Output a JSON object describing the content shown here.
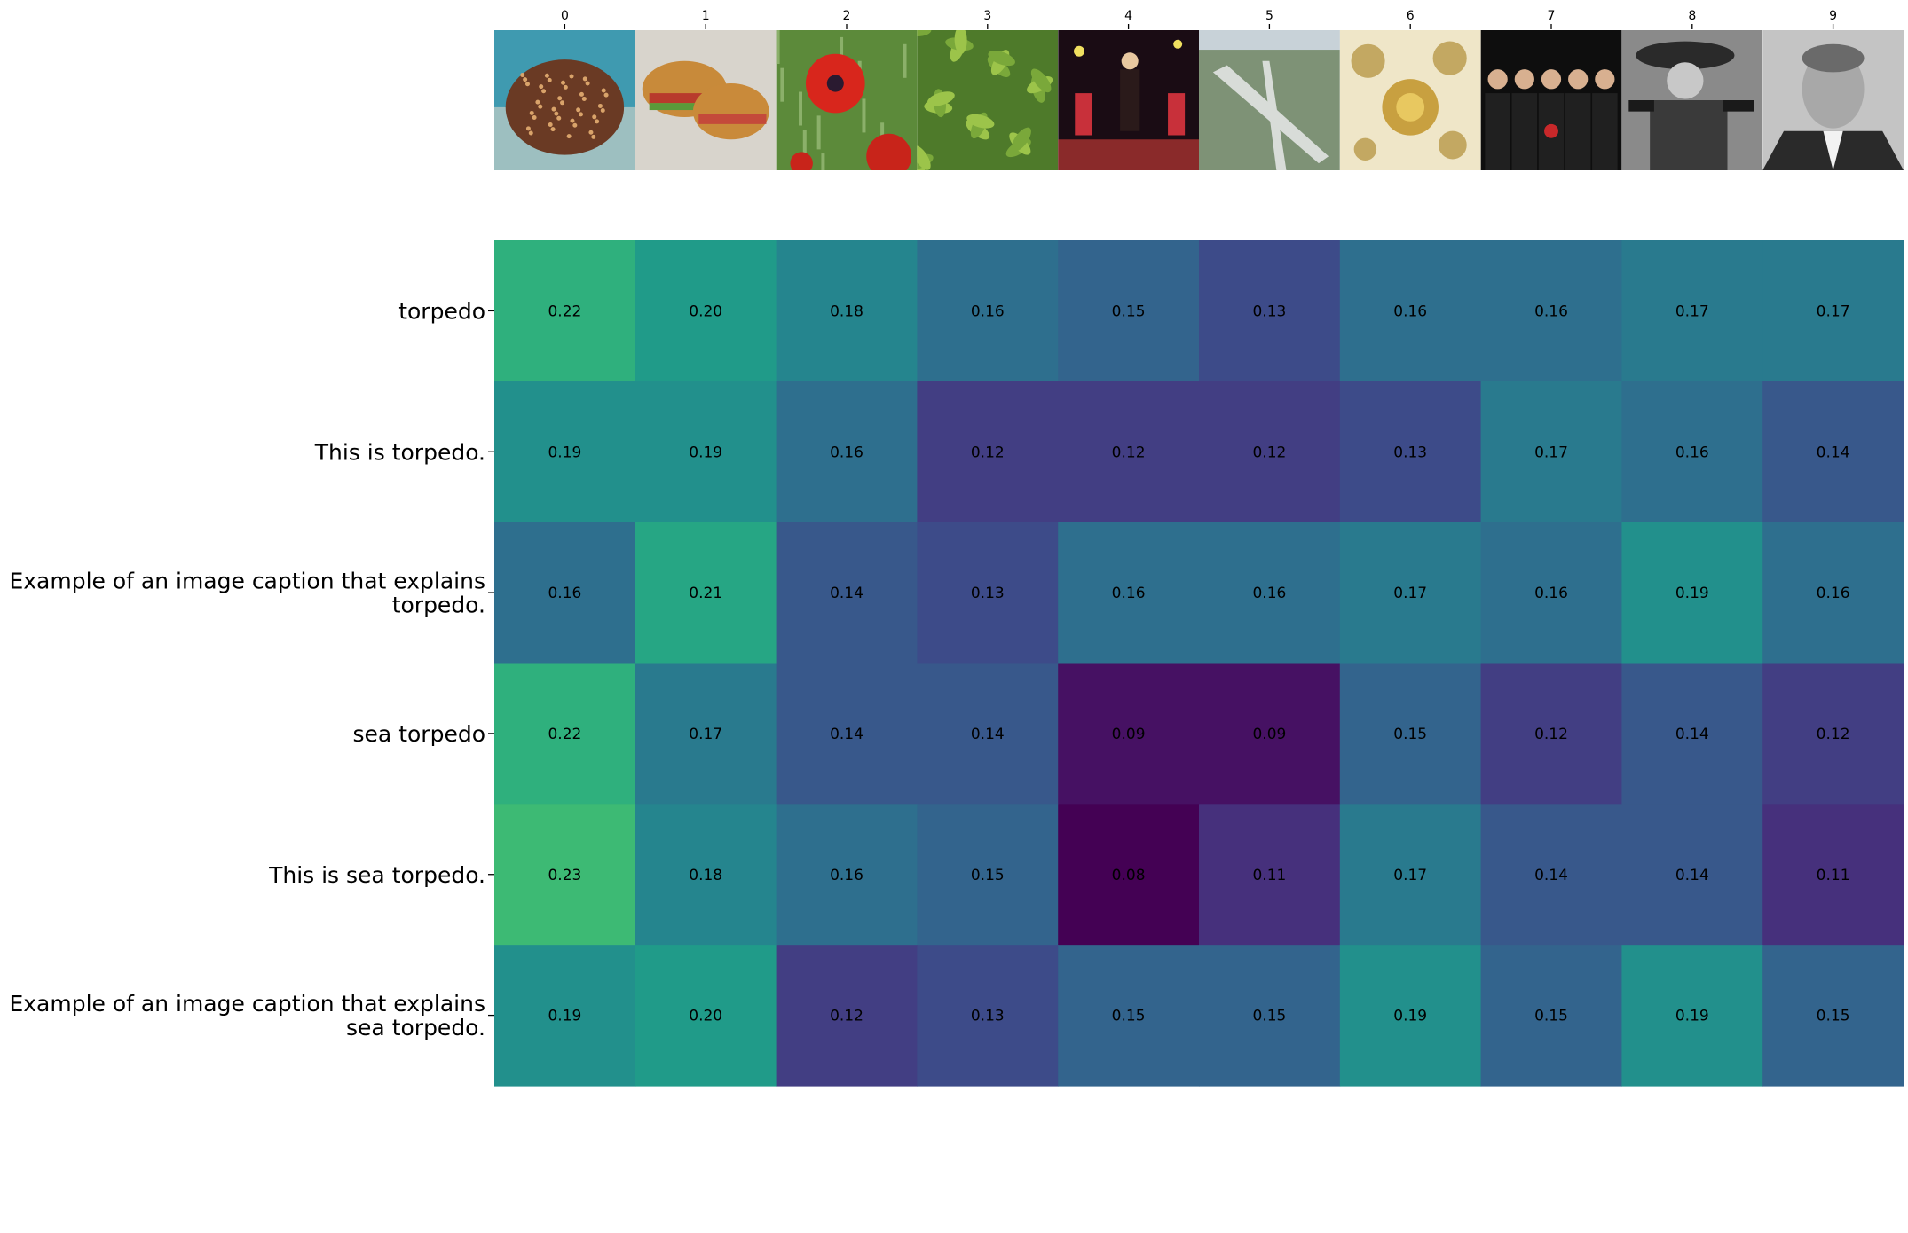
{
  "chart_data": {
    "type": "heatmap",
    "title": "",
    "xlabel": "",
    "ylabel": "",
    "columns": [
      "0",
      "1",
      "2",
      "3",
      "4",
      "5",
      "6",
      "7",
      "8",
      "9"
    ],
    "column_images": [
      "stingray-photo",
      "sandwich-photo",
      "red-poppy-photo",
      "green-plant-photo",
      "stage-performer-photo",
      "airport-aerial-photo",
      "radiolarian-illustration",
      "band-group-photo",
      "cowboy-gun-photo",
      "man-portrait-photo"
    ],
    "rows": [
      {
        "label_lines": [
          "torpedo"
        ],
        "values": [
          0.22,
          0.2,
          0.18,
          0.16,
          0.15,
          0.13,
          0.16,
          0.16,
          0.17,
          0.17
        ]
      },
      {
        "label_lines": [
          "This is torpedo."
        ],
        "values": [
          0.19,
          0.19,
          0.16,
          0.12,
          0.12,
          0.12,
          0.13,
          0.17,
          0.16,
          0.14
        ]
      },
      {
        "label_lines": [
          "Example of an image caption that explains",
          "torpedo."
        ],
        "values": [
          0.16,
          0.21,
          0.14,
          0.13,
          0.16,
          0.16,
          0.17,
          0.16,
          0.19,
          0.16
        ]
      },
      {
        "label_lines": [
          "sea torpedo"
        ],
        "values": [
          0.22,
          0.17,
          0.14,
          0.14,
          0.09,
          0.09,
          0.15,
          0.12,
          0.14,
          0.12
        ]
      },
      {
        "label_lines": [
          "This is sea torpedo."
        ],
        "values": [
          0.23,
          0.18,
          0.16,
          0.15,
          0.08,
          0.11,
          0.17,
          0.14,
          0.14,
          0.11
        ]
      },
      {
        "label_lines": [
          "Example of an image caption that explains",
          "sea torpedo."
        ],
        "values": [
          0.19,
          0.2,
          0.12,
          0.13,
          0.15,
          0.15,
          0.19,
          0.15,
          0.19,
          0.15
        ]
      }
    ],
    "color_scale": "viridis",
    "vmin": 0.08,
    "vmax": 0.3,
    "cell_label_color": "#000000",
    "grid": false,
    "legend": "none"
  }
}
